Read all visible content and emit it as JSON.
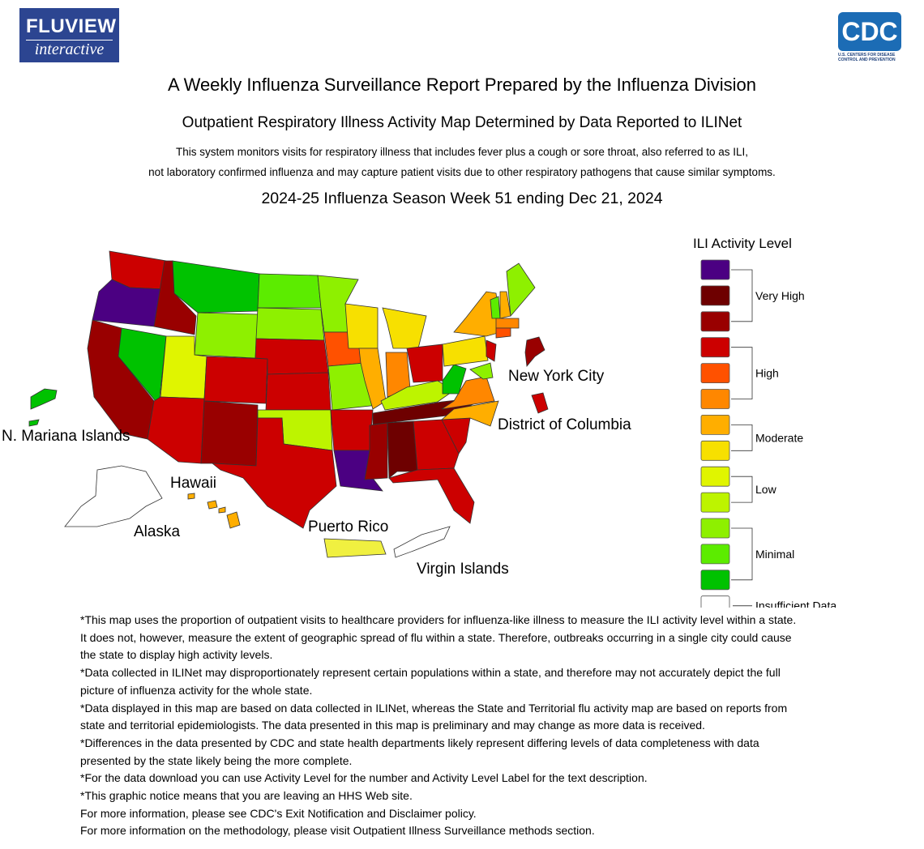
{
  "header": {
    "logo_title": "FLUVIEW",
    "logo_subtitle": "interactive",
    "cdc_mark": "CDC",
    "cdc_caption": "U.S. CENTERS FOR DISEASE CONTROL AND PREVENTION",
    "title": "A Weekly Influenza Surveillance Report Prepared by the Influenza Division",
    "subtitle": "Outpatient Respiratory Illness Activity Map Determined by Data Reported to ILINet",
    "description": [
      "This system monitors visits for respiratory illness that includes fever plus a cough or sore throat, also referred to as ILI,",
      "not laboratory confirmed influenza and may capture patient visits due to other respiratory pathogens that cause similar symptoms."
    ],
    "season": "2024-25 Influenza Season Week 51 ending Dec 21, 2024"
  },
  "map": {
    "labels": {
      "mariana": "N. Mariana Islands",
      "hawaii": "Hawaii",
      "alaska": "Alaska",
      "puerto_rico": "Puerto Rico",
      "virgin_islands": "Virgin Islands",
      "nyc": "New York City",
      "dc": "District of Columbia"
    }
  },
  "legend": {
    "title": "ILI Activity Level",
    "groups": [
      {
        "label": "Very High",
        "colors": [
          "#4b0082",
          "#6e0000",
          "#990000"
        ]
      },
      {
        "label": "High",
        "colors": [
          "#cc0000",
          "#ff5100",
          "#ff8700"
        ]
      },
      {
        "label": "Moderate",
        "colors": [
          "#ffae00",
          "#f7e000"
        ]
      },
      {
        "label": "Low",
        "colors": [
          "#e0f500",
          "#bdf400"
        ]
      },
      {
        "label": "Minimal",
        "colors": [
          "#8ef000",
          "#5cec00",
          "#00c200"
        ]
      },
      {
        "label": "Insufficient Data",
        "colors": [
          "#ffffff"
        ]
      }
    ]
  },
  "footnotes": [
    "*This map uses the proportion of outpatient visits to healthcare providers for influenza-like illness to measure the ILI activity level within a state. It does not, however, measure the extent of geographic spread of flu within a state. Therefore, outbreaks occurring in a single city could cause the state to display high activity levels.",
    "*Data collected in ILINet may disproportionately represent certain populations within a state, and therefore may not accurately depict the full picture of influenza activity for the whole state.",
    "*Data displayed in this map are based on data collected in ILINet, whereas the State and Territorial flu activity map are based on reports from state and territorial epidemiologists. The data presented in this map is preliminary and may change as more data is received.",
    "*Differences in the data presented by CDC and state health departments likely represent differing levels of data completeness with data presented by the state likely being the more complete.",
    "*For the data download you can use Activity Level for the number and Activity Level Label for the text description.",
    "*This graphic notice means that you are leaving an HHS Web site.",
    "For more information, please see CDC's Exit Notification and Disclaimer policy.",
    "For more information on the methodology, please visit Outpatient Illness Surveillance methods section."
  ]
}
